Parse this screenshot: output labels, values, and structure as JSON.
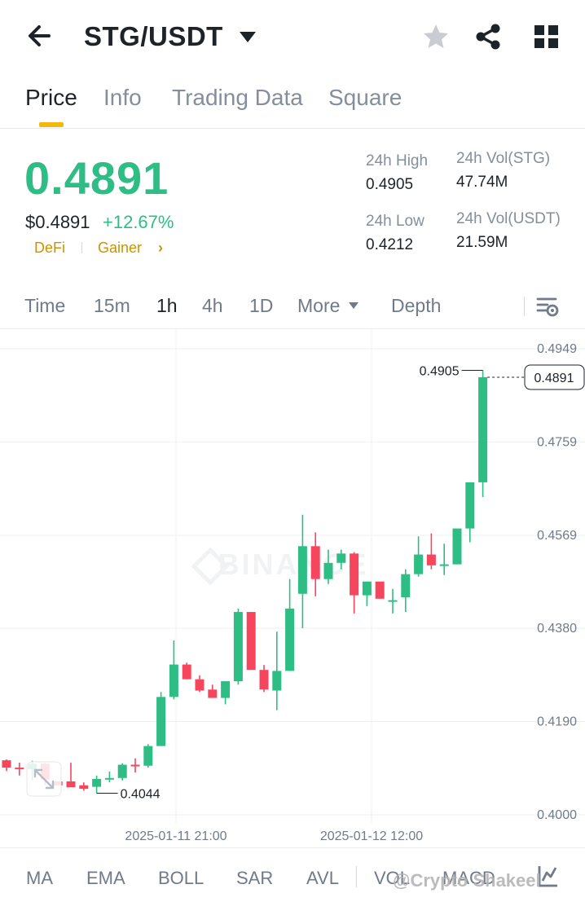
{
  "header": {
    "pair": "STG/USDT",
    "back_icon": "arrow-left-icon",
    "caret_icon": "caret-down-icon",
    "favorite_icon": "star-icon",
    "share_icon": "share-icon",
    "menu_icon": "grid-icon"
  },
  "tabs": [
    "Price",
    "Info",
    "Trading Data",
    "Square"
  ],
  "active_tab": "Price",
  "price": {
    "last": "0.4891",
    "usd": "$0.4891",
    "change": "+12.67%",
    "tags": [
      "DeFi",
      "Gainer"
    ],
    "chevron": "›"
  },
  "stats": {
    "high_label": "24h High",
    "high": "0.4905",
    "low_label": "24h Low",
    "low": "0.4212",
    "vol_base_label": "24h Vol(STG)",
    "vol_base": "47.74M",
    "vol_quote_label": "24h Vol(USDT)",
    "vol_quote": "21.59M"
  },
  "intervals": [
    "Time",
    "15m",
    "1h",
    "4h",
    "1D",
    "More",
    "Depth"
  ],
  "active_interval": "1h",
  "chart_data": {
    "type": "candlestick",
    "y_ticks": [
      "0.4949",
      "0.4759",
      "0.4569",
      "0.4380",
      "0.4190",
      "0.4000"
    ],
    "ylim": [
      0.4,
      0.4949
    ],
    "x_ticks": [
      "2025-01-11 21:00",
      "2025-01-12 12:00"
    ],
    "high_label": "0.4905",
    "low_label": "0.4044",
    "last_price_label": "0.4891",
    "watermark": "BINANCE",
    "candles": [
      {
        "o": 0.4111,
        "h": 0.4113,
        "l": 0.4089,
        "c": 0.4096
      },
      {
        "o": 0.4096,
        "h": 0.4106,
        "l": 0.408,
        "c": 0.4093
      },
      {
        "o": 0.4093,
        "h": 0.411,
        "l": 0.407,
        "c": 0.4104
      },
      {
        "o": 0.4104,
        "h": 0.4106,
        "l": 0.406,
        "c": 0.4072
      },
      {
        "o": 0.4068,
        "h": 0.4066,
        "l": 0.406,
        "c": 0.406
      },
      {
        "o": 0.4068,
        "h": 0.4106,
        "l": 0.4058,
        "c": 0.4056
      },
      {
        "o": 0.406,
        "h": 0.4066,
        "l": 0.4049,
        "c": 0.4053
      },
      {
        "o": 0.4057,
        "h": 0.408,
        "l": 0.4044,
        "c": 0.4073
      },
      {
        "o": 0.4073,
        "h": 0.4088,
        "l": 0.4066,
        "c": 0.4075
      },
      {
        "o": 0.4075,
        "h": 0.4105,
        "l": 0.407,
        "c": 0.4102
      },
      {
        "o": 0.4102,
        "h": 0.4115,
        "l": 0.4086,
        "c": 0.41
      },
      {
        "o": 0.41,
        "h": 0.4144,
        "l": 0.4096,
        "c": 0.414
      },
      {
        "o": 0.414,
        "h": 0.425,
        "l": 0.414,
        "c": 0.424
      },
      {
        "o": 0.424,
        "h": 0.4355,
        "l": 0.4235,
        "c": 0.4306
      },
      {
        "o": 0.4306,
        "h": 0.431,
        "l": 0.4276,
        "c": 0.4276
      },
      {
        "o": 0.4276,
        "h": 0.4284,
        "l": 0.425,
        "c": 0.4253
      },
      {
        "o": 0.4255,
        "h": 0.4265,
        "l": 0.4238,
        "c": 0.4238
      },
      {
        "o": 0.4238,
        "h": 0.4272,
        "l": 0.4225,
        "c": 0.4272
      },
      {
        "o": 0.4272,
        "h": 0.442,
        "l": 0.4265,
        "c": 0.4413
      },
      {
        "o": 0.4413,
        "h": 0.4413,
        "l": 0.4295,
        "c": 0.4295
      },
      {
        "o": 0.4295,
        "h": 0.4305,
        "l": 0.425,
        "c": 0.4255
      },
      {
        "o": 0.4253,
        "h": 0.4373,
        "l": 0.4213,
        "c": 0.4293
      },
      {
        "o": 0.4293,
        "h": 0.448,
        "l": 0.4293,
        "c": 0.442
      },
      {
        "o": 0.445,
        "h": 0.4611,
        "l": 0.438,
        "c": 0.4547
      },
      {
        "o": 0.4547,
        "h": 0.4575,
        "l": 0.4445,
        "c": 0.448
      },
      {
        "o": 0.448,
        "h": 0.454,
        "l": 0.447,
        "c": 0.4513
      },
      {
        "o": 0.4513,
        "h": 0.454,
        "l": 0.45,
        "c": 0.4532
      },
      {
        "o": 0.4532,
        "h": 0.4535,
        "l": 0.441,
        "c": 0.4447
      },
      {
        "o": 0.4447,
        "h": 0.4472,
        "l": 0.4425,
        "c": 0.4475
      },
      {
        "o": 0.4475,
        "h": 0.4468,
        "l": 0.444,
        "c": 0.444
      },
      {
        "o": 0.4437,
        "h": 0.446,
        "l": 0.441,
        "c": 0.4437
      },
      {
        "o": 0.4443,
        "h": 0.45,
        "l": 0.4413,
        "c": 0.449
      },
      {
        "o": 0.449,
        "h": 0.4567,
        "l": 0.4485,
        "c": 0.453
      },
      {
        "o": 0.453,
        "h": 0.4573,
        "l": 0.45,
        "c": 0.4508
      },
      {
        "o": 0.4508,
        "h": 0.4552,
        "l": 0.4488,
        "c": 0.451
      },
      {
        "o": 0.451,
        "h": 0.4577,
        "l": 0.451,
        "c": 0.4583
      },
      {
        "o": 0.4583,
        "h": 0.4677,
        "l": 0.4555,
        "c": 0.4677
      },
      {
        "o": 0.4677,
        "h": 0.4905,
        "l": 0.4647,
        "c": 0.4891
      }
    ]
  },
  "indicators": [
    "MA",
    "EMA",
    "BOLL",
    "SAR",
    "AVL",
    "VOL",
    "MACD"
  ],
  "watermark_text": "@Crypto Shakeel"
}
